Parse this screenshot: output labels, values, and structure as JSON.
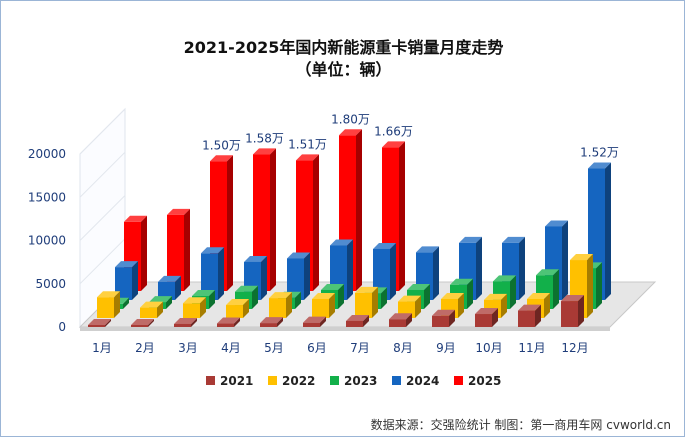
{
  "title": "2021-2025年国内新能源重卡销量月度走势",
  "subtitle": "（单位：辆）",
  "source": "数据来源：交强险统计  制图：第一商用车网 cvworld.cn",
  "colors": {
    "2021": "#a93a35",
    "2022": "#ffc000",
    "2023": "#12b04a",
    "2024": "#1565c0",
    "2025": "#ff0000"
  },
  "chart_data": {
    "type": "bar",
    "categories": [
      "1月",
      "2月",
      "3月",
      "4月",
      "5月",
      "6月",
      "7月",
      "8月",
      "9月",
      "10月",
      "11月",
      "12月"
    ],
    "ylim": [
      0,
      20000
    ],
    "yticks": [
      0,
      5000,
      10000,
      15000,
      20000
    ],
    "series": [
      {
        "name": "2021",
        "values": [
          100,
          150,
          350,
          400,
          450,
          500,
          700,
          900,
          1300,
          1500,
          1900,
          3000
        ]
      },
      {
        "name": "2022",
        "values": [
          2400,
          1200,
          1700,
          1500,
          2300,
          2200,
          2900,
          1900,
          2200,
          2100,
          2200,
          6700
        ]
      },
      {
        "name": "2023",
        "values": [
          600,
          800,
          1500,
          2000,
          1300,
          2200,
          1800,
          2200,
          2800,
          3200,
          3900,
          4700
        ]
      },
      {
        "name": "2024",
        "values": [
          3800,
          2100,
          5400,
          4400,
          4800,
          6300,
          5900,
          5500,
          6600,
          6600,
          8500,
          15200
        ]
      },
      {
        "name": "2025",
        "values": [
          8000,
          8800,
          15000,
          15800,
          15100,
          18000,
          16600,
          null,
          null,
          null,
          null,
          null
        ]
      }
    ],
    "value_labels": [
      {
        "series": "2025",
        "index": 2,
        "text": "1.50万"
      },
      {
        "series": "2025",
        "index": 3,
        "text": "1.58万"
      },
      {
        "series": "2025",
        "index": 4,
        "text": "1.51万"
      },
      {
        "series": "2025",
        "index": 5,
        "text": "1.80万"
      },
      {
        "series": "2025",
        "index": 6,
        "text": "1.66万"
      },
      {
        "series": "2024",
        "index": 11,
        "text": "1.52万"
      }
    ],
    "legend_position": "bottom"
  }
}
